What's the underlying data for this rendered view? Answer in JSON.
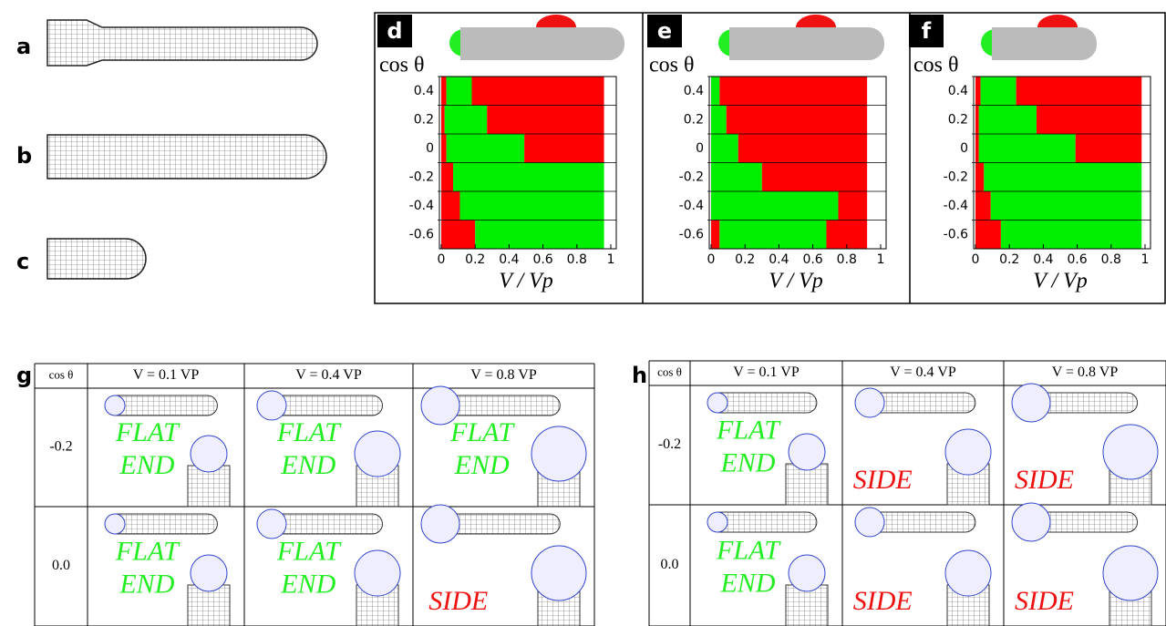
{
  "panel_labels": [
    "a",
    "b",
    "c"
  ],
  "chart_data": [
    {
      "type": "bar",
      "orientation": "horizontal",
      "stacked": true,
      "panel": "d",
      "y_label": "cos θ",
      "x_label": "V / Vp",
      "categories": [
        "0.4",
        "0.2",
        "0",
        "-0.2",
        "-0.4",
        "-0.6"
      ],
      "series": [
        {
          "color": "#ff0000",
          "values": [
            0.03,
            0.02,
            0.03,
            0.07,
            0.11,
            0.2
          ]
        },
        {
          "color": "#00ee00",
          "values": [
            0.15,
            0.25,
            0.46,
            0.89,
            0.85,
            0.76
          ]
        },
        {
          "color": "#ff0000",
          "values": [
            0.78,
            0.69,
            0.47,
            0,
            0,
            0
          ]
        }
      ],
      "xlim": [
        0,
        1
      ],
      "xticks": [
        0,
        0.2,
        0.4,
        0.6,
        0.8,
        1
      ]
    },
    {
      "type": "bar",
      "orientation": "horizontal",
      "stacked": true,
      "panel": "e",
      "y_label": "cos θ",
      "x_label": "V / Vp",
      "categories": [
        "0.4",
        "0.2",
        "0",
        "-0.2",
        "-0.4",
        "-0.6"
      ],
      "series": [
        {
          "color": "#ff0000",
          "values": [
            0,
            0,
            0,
            0,
            0,
            0.05
          ]
        },
        {
          "color": "#00ee00",
          "values": [
            0.05,
            0.09,
            0.16,
            0.3,
            0.75,
            0.63
          ]
        },
        {
          "color": "#ff0000",
          "values": [
            0.87,
            0.83,
            0.76,
            0.62,
            0.17,
            0.24
          ]
        }
      ],
      "xlim": [
        0,
        1
      ],
      "xticks": [
        0,
        0.2,
        0.4,
        0.6,
        0.8,
        1
      ]
    },
    {
      "type": "bar",
      "orientation": "horizontal",
      "stacked": true,
      "panel": "f",
      "y_label": "cos θ",
      "x_label": "V / Vp",
      "categories": [
        "0.4",
        "0.2",
        "0",
        "-0.2",
        "-0.4",
        "-0.6"
      ],
      "series": [
        {
          "color": "#ff0000",
          "values": [
            0.03,
            0.02,
            0.02,
            0.05,
            0.09,
            0.15
          ]
        },
        {
          "color": "#00ee00",
          "values": [
            0.21,
            0.34,
            0.57,
            0.93,
            0.89,
            0.83
          ]
        },
        {
          "color": "#ff0000",
          "values": [
            0.74,
            0.62,
            0.39,
            0,
            0,
            0
          ]
        }
      ],
      "xlim": [
        0,
        1
      ],
      "xticks": [
        0,
        0.2,
        0.4,
        0.6,
        0.8,
        1
      ]
    }
  ],
  "tables": [
    {
      "panel": "g",
      "header": [
        "cos θ",
        "V = 0.1 VP",
        "V = 0.4 VP",
        "V = 0.8 VP"
      ],
      "row_labels": [
        "-0.2",
        "0.0"
      ],
      "cells": [
        [
          {
            "text": [
              "FLAT",
              "END"
            ],
            "color": "#22ee22"
          },
          {
            "text": [
              "FLAT",
              "END"
            ],
            "color": "#22ee22"
          },
          {
            "text": [
              "FLAT",
              "END"
            ],
            "color": "#22ee22"
          }
        ],
        [
          {
            "text": [
              "FLAT",
              "END"
            ],
            "color": "#22ee22"
          },
          {
            "text": [
              "FLAT",
              "END"
            ],
            "color": "#22ee22"
          },
          {
            "text": [
              "SIDE"
            ],
            "color": "#ee1111"
          }
        ]
      ]
    },
    {
      "panel": "h",
      "header": [
        "cos θ",
        "V = 0.1 VP",
        "V = 0.4 VP",
        "V = 0.8 VP"
      ],
      "row_labels": [
        "-0.2",
        "0.0"
      ],
      "cells": [
        [
          {
            "text": [
              "FLAT",
              "END"
            ],
            "color": "#22ee22"
          },
          {
            "text": [
              "SIDE"
            ],
            "color": "#ee1111"
          },
          {
            "text": [
              "SIDE"
            ],
            "color": "#ee1111"
          }
        ],
        [
          {
            "text": [
              "FLAT",
              "END"
            ],
            "color": "#22ee22"
          },
          {
            "text": [
              "SIDE"
            ],
            "color": "#ee1111"
          },
          {
            "text": [
              "SIDE"
            ],
            "color": "#ee1111"
          }
        ]
      ]
    }
  ]
}
